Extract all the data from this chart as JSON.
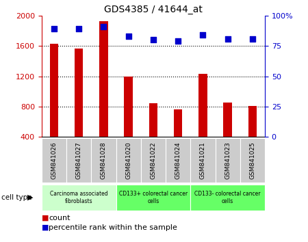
{
  "title": "GDS4385 / 41644_at",
  "samples": [
    "GSM841026",
    "GSM841027",
    "GSM841028",
    "GSM841020",
    "GSM841022",
    "GSM841024",
    "GSM841021",
    "GSM841023",
    "GSM841025"
  ],
  "counts": [
    1630,
    1565,
    1930,
    1200,
    840,
    760,
    1230,
    855,
    810
  ],
  "percentile_ranks": [
    89,
    89,
    91,
    83,
    80,
    79,
    84,
    81,
    81
  ],
  "ylim_left": [
    400,
    2000
  ],
  "ylim_right": [
    0,
    100
  ],
  "yticks_left": [
    400,
    800,
    1200,
    1600,
    2000
  ],
  "yticks_right": [
    0,
    25,
    50,
    75,
    100
  ],
  "bar_color": "#cc0000",
  "dot_color": "#0000cc",
  "cell_groups": [
    {
      "label": "Carcinoma associated\nfibroblasts",
      "start": 0,
      "end": 3,
      "color": "#ccffcc"
    },
    {
      "label": "CD133+ colorectal cancer\ncells",
      "start": 3,
      "end": 6,
      "color": "#66ff66"
    },
    {
      "label": "CD133- colorectal cancer\ncells",
      "start": 6,
      "end": 9,
      "color": "#66ff66"
    }
  ],
  "cell_type_label": "cell type",
  "legend_count_label": "count",
  "legend_pct_label": "percentile rank within the sample",
  "ylabel_left_color": "#cc0000",
  "ylabel_right_color": "#0000cc",
  "sample_cell_color": "#cccccc",
  "bar_width": 0.35,
  "dot_size": 30
}
